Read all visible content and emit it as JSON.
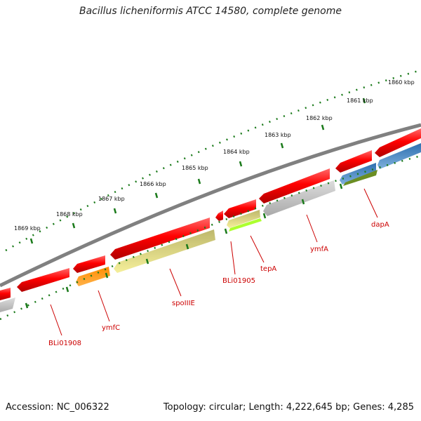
{
  "title": "Bacillus licheniformis ATCC 14580, complete genome",
  "footer": {
    "accession": "Accession: NC_006322",
    "summary": "Topology: circular; Length: 4,222,645 bp; Genes: 4,285"
  },
  "kbp_ticks": [
    "1860 kbp",
    "1861 kbp",
    "1862 kbp",
    "1863 kbp",
    "1864 kbp",
    "1865 kbp",
    "1866 kbp",
    "1867 kbp",
    "1868 kbp",
    "1869 kbp"
  ],
  "genes": [
    {
      "label": "dapA"
    },
    {
      "label": "ymfA"
    },
    {
      "label": "tepA"
    },
    {
      "label": "BLi01905"
    },
    {
      "label": "spoIIIE"
    },
    {
      "label": "ymfC"
    },
    {
      "label": "BLi01908"
    }
  ],
  "colors": {
    "cds": "#ff0000",
    "backbone": "#808080",
    "tick": "#1a7a1a",
    "label": "#cc0000"
  }
}
